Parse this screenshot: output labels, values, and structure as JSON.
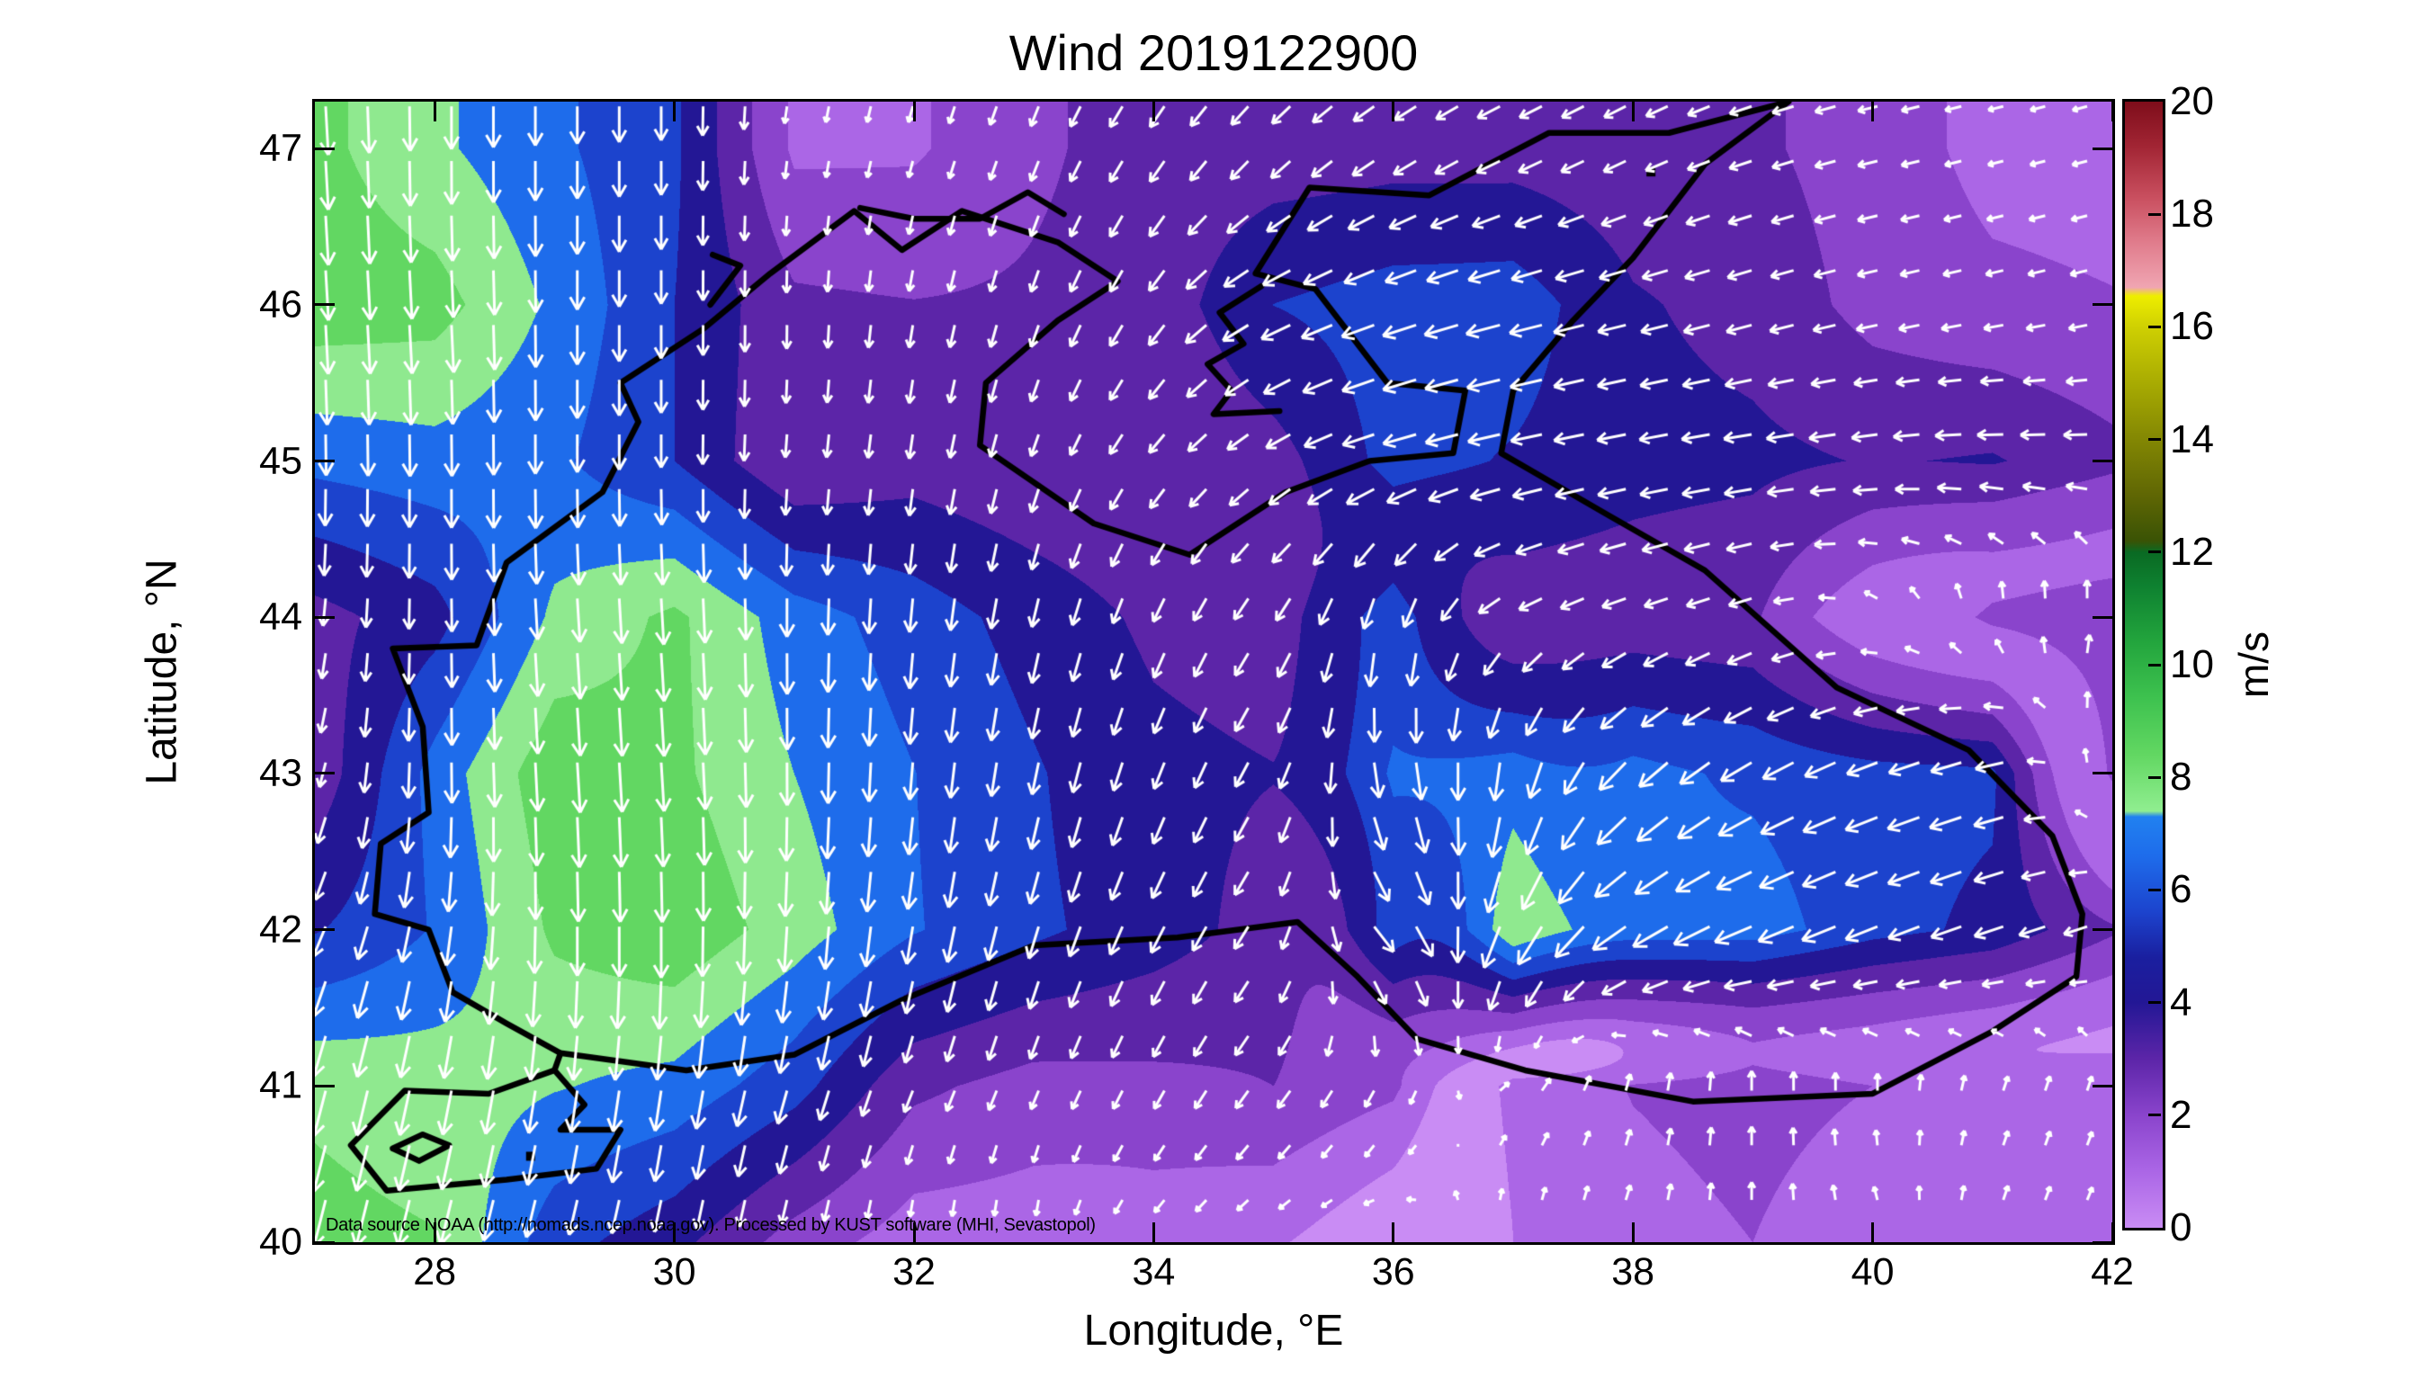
{
  "chart_data": {
    "type": "heatmap",
    "subtype": "wind-vector-field-map",
    "title": "Wind 2019122900",
    "xlabel": "Longitude, °E",
    "ylabel": "Latitude, °N",
    "xlim": [
      27,
      42
    ],
    "ylim": [
      40,
      47.3
    ],
    "xticks": [
      28,
      30,
      32,
      34,
      36,
      38,
      40,
      42
    ],
    "yticks": [
      40,
      41,
      42,
      43,
      44,
      45,
      46,
      47
    ],
    "grid": false,
    "legend_position": "none",
    "annotation": "Data source NOAA (http://nomads.ncep.noaa.gov). Processed by KUST software (MHI, Sevastopol)",
    "colorbar": {
      "label": "m/s",
      "min": 0,
      "max": 20,
      "ticks": [
        0,
        2,
        4,
        6,
        8,
        10,
        12,
        14,
        16,
        18,
        20
      ],
      "stops": [
        [
          0,
          "#c98cf4"
        ],
        [
          1,
          "#ab66e6"
        ],
        [
          2,
          "#8a44cc"
        ],
        [
          3,
          "#5c25a8"
        ],
        [
          4,
          "#231795"
        ],
        [
          4.8,
          "#1a1f9f"
        ],
        [
          5.6,
          "#1c43cd"
        ],
        [
          6.6,
          "#1e6ceb"
        ],
        [
          7.3,
          "#2181f0"
        ],
        [
          7.4,
          "#90ee90"
        ],
        [
          8.4,
          "#62d762"
        ],
        [
          9.4,
          "#3ec24f"
        ],
        [
          10.4,
          "#23a53d"
        ],
        [
          11.4,
          "#0e8130"
        ],
        [
          12,
          "#0a6a23"
        ],
        [
          12.2,
          "#3a5305"
        ],
        [
          13,
          "#5f6604"
        ],
        [
          14,
          "#838703"
        ],
        [
          15,
          "#a8ab02"
        ],
        [
          16,
          "#cfd002"
        ],
        [
          16.55,
          "#eeee00"
        ],
        [
          16.7,
          "#f0a5b2"
        ],
        [
          17.5,
          "#e07c8c"
        ],
        [
          18.3,
          "#c94f5f"
        ],
        [
          19.2,
          "#a22534"
        ],
        [
          20,
          "#7e0d1a"
        ]
      ]
    },
    "speed_band_size": 1,
    "speed_band_colors": [
      "#c98cf4",
      "#ab66e6",
      "#8a44cc",
      "#5c25a8",
      "#231795",
      "#1c43cd",
      "#1e6ceb",
      "#8fe98f",
      "#62d762",
      "#3ec24f",
      "#23a53d",
      "#0d7d2a"
    ],
    "arrow_color": "#ffffff",
    "coast_color": "#000000",
    "arrow_grid_step_deg": 0.35,
    "wind_grid": {
      "lon_start": 27,
      "lon_step": 1,
      "lon_count": 16,
      "lat_start": 47,
      "lat_step": -1,
      "lat_count": 8,
      "u": [
        [
          0.5,
          0,
          0,
          0,
          -0.3,
          -0.5,
          -1,
          -2,
          -2.5,
          -3,
          -3.2,
          -3,
          -3,
          -2.5,
          -1.6,
          -1.5
        ],
        [
          0.5,
          0.5,
          0,
          0,
          0,
          -0.5,
          -1,
          -2,
          -4.5,
          -5.2,
          -5.4,
          -4,
          -3.5,
          -2.6,
          -2.2,
          -2
        ],
        [
          0,
          0,
          0,
          0,
          -0.3,
          -0.5,
          -1,
          -2,
          -3,
          -5.2,
          -4.8,
          -4.3,
          -4.2,
          -3.9,
          -4.1,
          -3.3
        ],
        [
          -0.5,
          0,
          0.5,
          0.5,
          0,
          -0.5,
          -1,
          -1.5,
          -2,
          -1,
          -3,
          -3.2,
          -3,
          -1,
          0.3,
          0.5
        ],
        [
          -1,
          0,
          0.5,
          0.5,
          0,
          -0.5,
          -1,
          -1.5,
          -2,
          1.5,
          -1,
          -4.5,
          -5,
          -5,
          -5,
          1
        ],
        [
          -2,
          -1,
          0,
          0,
          -0.5,
          -1,
          -1.5,
          -2,
          -2,
          4,
          -3.5,
          -5.5,
          -6,
          -5,
          -4.5,
          -3
        ],
        [
          -2,
          -1.5,
          -1,
          -1,
          -1.5,
          -1.2,
          -1,
          -1.3,
          -1.8,
          -1,
          1,
          0.5,
          0,
          0,
          0.5,
          0.5
        ],
        [
          -2,
          -2,
          -1.5,
          -1,
          -0.5,
          0,
          0,
          -1,
          -1,
          -0.5,
          0,
          0.5,
          0,
          -0.5,
          0.5,
          0.5
        ]
      ],
      "v": [
        [
          -8.3,
          -7.2,
          -6.2,
          -5.2,
          -1.8,
          -1.8,
          -2.6,
          -3,
          -2.5,
          -2,
          -1.6,
          -1.5,
          -1,
          -0.6,
          -0.4,
          -0.4
        ],
        [
          -8.6,
          -8.4,
          -6.8,
          -5,
          -3.2,
          -3,
          -3,
          -3,
          -2.2,
          -1.8,
          -1.4,
          -1,
          -1,
          -0.6,
          -0.5,
          -0.5
        ],
        [
          -6.3,
          -6.6,
          -6.2,
          -5,
          -3,
          -3.5,
          -3,
          -2.5,
          -2,
          -1.5,
          -1,
          -0.8,
          -0.6,
          -0.5,
          0,
          0
        ],
        [
          -3.6,
          -4.6,
          -7.2,
          -8.2,
          -6.5,
          -5.5,
          -4.5,
          -3.5,
          -3,
          -5.5,
          -1.8,
          -1.2,
          -1,
          0.8,
          2.2,
          2.6
        ],
        [
          -3.2,
          -6.4,
          -8.7,
          -8.2,
          -7,
          -6,
          -5,
          -4,
          -3.5,
          -6,
          -6.5,
          -4.5,
          -3,
          -2,
          -1.5,
          2
        ],
        [
          -4.5,
          -6,
          -8.2,
          -8.8,
          -7.5,
          -6,
          -5,
          -4,
          -3,
          -4,
          -7.2,
          -3.5,
          -2.5,
          -2,
          -1.5,
          -1
        ],
        [
          -7.6,
          -7.4,
          -7,
          -6.6,
          -5.2,
          -3,
          -2.4,
          -2.4,
          -2.4,
          -2,
          1,
          2,
          2.5,
          2,
          1.5,
          1.5
        ],
        [
          -8,
          -7.8,
          -5.2,
          -4.2,
          -2.5,
          -1.5,
          -1.5,
          -1,
          -0.5,
          0.5,
          1,
          1.5,
          2,
          1,
          1.5,
          1
        ]
      ]
    },
    "coastlines": [
      [
        [
          29.05,
          41.21
        ],
        [
          28.6,
          41.4
        ],
        [
          28.15,
          41.6
        ],
        [
          27.95,
          42.0
        ],
        [
          27.5,
          42.1
        ],
        [
          27.55,
          42.55
        ],
        [
          27.95,
          42.75
        ],
        [
          27.9,
          43.3
        ],
        [
          27.65,
          43.8
        ],
        [
          28.35,
          43.82
        ],
        [
          28.6,
          44.35
        ],
        [
          29.4,
          44.8
        ],
        [
          29.7,
          45.25
        ],
        [
          29.55,
          45.5
        ],
        [
          30.25,
          45.85
        ],
        [
          30.8,
          46.2
        ],
        [
          31.5,
          46.6
        ],
        [
          31.9,
          46.35
        ],
        [
          32.4,
          46.6
        ],
        [
          33.2,
          46.4
        ],
        [
          33.7,
          46.15
        ],
        [
          33.2,
          45.9
        ],
        [
          32.6,
          45.5
        ],
        [
          32.55,
          45.1
        ],
        [
          33.5,
          44.6
        ],
        [
          34.3,
          44.4
        ],
        [
          35.1,
          44.8
        ],
        [
          35.8,
          45.0
        ],
        [
          36.5,
          45.05
        ],
        [
          36.6,
          45.45
        ],
        [
          35.95,
          45.5
        ],
        [
          35.35,
          46.1
        ],
        [
          34.85,
          46.2
        ],
        [
          35.3,
          46.75
        ],
        [
          36.3,
          46.7
        ],
        [
          37.3,
          47.1
        ],
        [
          38.3,
          47.1
        ],
        [
          39.3,
          47.3
        ],
        [
          38.6,
          46.9
        ],
        [
          38.0,
          46.3
        ],
        [
          37.5,
          45.9
        ],
        [
          37.0,
          45.45
        ],
        [
          36.9,
          45.05
        ],
        [
          37.8,
          44.65
        ],
        [
          38.6,
          44.3
        ],
        [
          39.7,
          43.55
        ],
        [
          40.8,
          43.15
        ],
        [
          41.5,
          42.6
        ],
        [
          41.75,
          42.1
        ],
        [
          41.7,
          41.7
        ],
        [
          41.0,
          41.35
        ],
        [
          40.0,
          40.95
        ],
        [
          38.5,
          40.9
        ],
        [
          37.1,
          41.1
        ],
        [
          36.2,
          41.3
        ],
        [
          35.7,
          41.7
        ],
        [
          35.2,
          42.05
        ],
        [
          34.2,
          41.95
        ],
        [
          33.0,
          41.9
        ],
        [
          31.9,
          41.55
        ],
        [
          31.0,
          41.2
        ],
        [
          30.1,
          41.1
        ],
        [
          29.05,
          41.21
        ]
      ],
      [
        [
          29.0,
          41.1
        ],
        [
          28.45,
          40.95
        ],
        [
          27.75,
          40.97
        ],
        [
          27.3,
          40.62
        ],
        [
          27.6,
          40.33
        ],
        [
          28.6,
          40.4
        ],
        [
          29.35,
          40.47
        ],
        [
          29.55,
          40.72
        ],
        [
          29.05,
          40.72
        ],
        [
          29.25,
          40.88
        ],
        [
          29.0,
          41.1
        ]
      ],
      [
        [
          29.05,
          41.21
        ],
        [
          29.0,
          41.1
        ]
      ],
      [
        [
          27.65,
          40.6
        ],
        [
          27.9,
          40.69
        ],
        [
          28.12,
          40.62
        ],
        [
          27.87,
          40.52
        ],
        [
          27.65,
          40.6
        ]
      ],
      [
        [
          30.3,
          46.0
        ],
        [
          30.55,
          46.25
        ],
        [
          30.32,
          46.32
        ]
      ],
      [
        [
          31.55,
          46.62
        ],
        [
          32.0,
          46.55
        ],
        [
          32.55,
          46.55
        ],
        [
          32.95,
          46.72
        ],
        [
          33.25,
          46.58
        ]
      ],
      [
        [
          34.9,
          46.12
        ],
        [
          34.55,
          45.95
        ],
        [
          34.75,
          45.75
        ],
        [
          34.45,
          45.62
        ],
        [
          34.65,
          45.45
        ],
        [
          34.5,
          45.3
        ],
        [
          35.05,
          45.32
        ]
      ]
    ],
    "markers": [
      [
        28.8,
        40.55
      ],
      [
        38.15,
        46.85
      ]
    ]
  }
}
